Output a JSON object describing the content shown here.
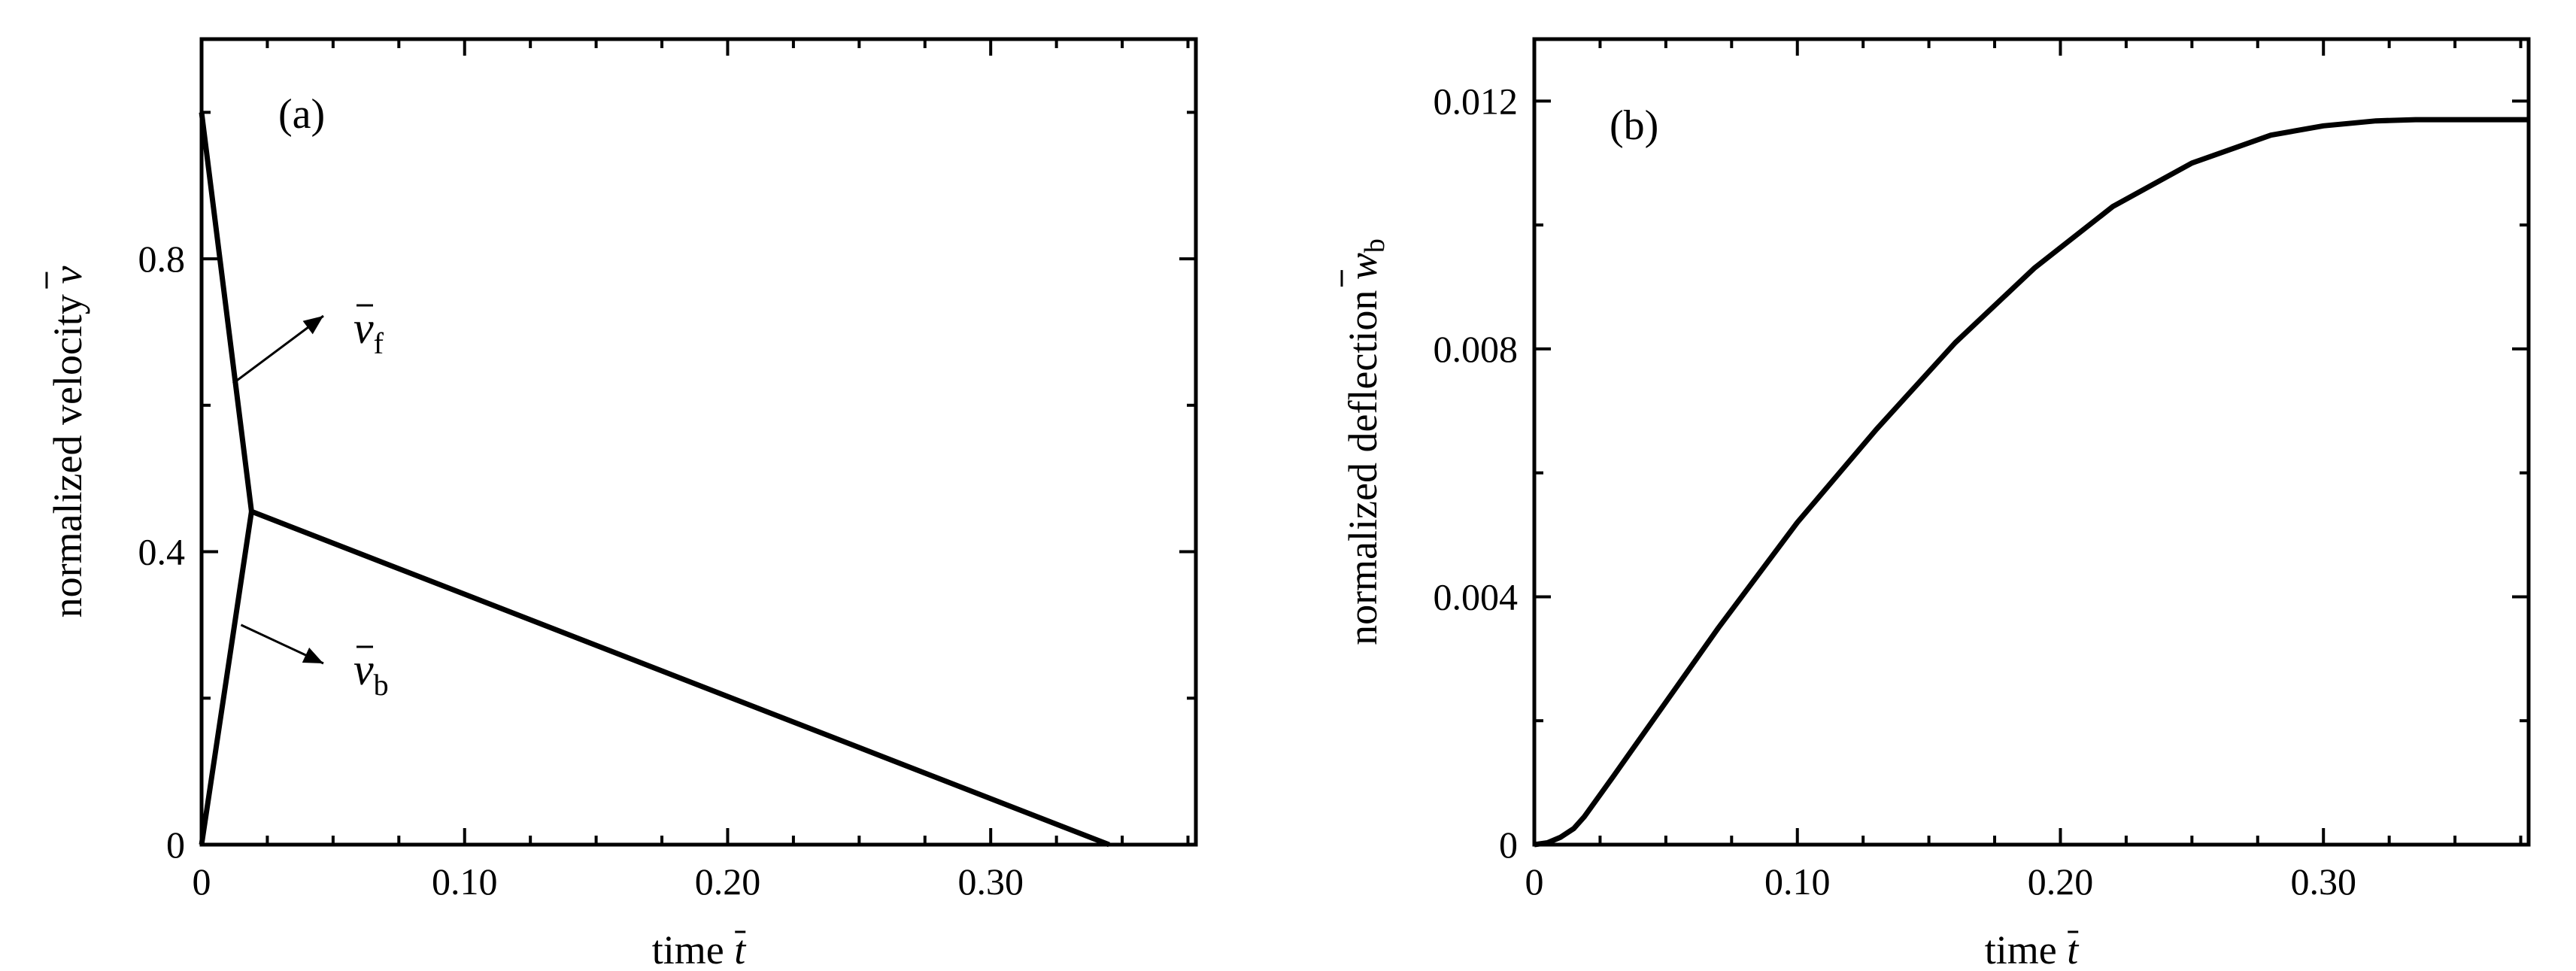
{
  "colors": {
    "line": "#000000",
    "background": "#ffffff"
  },
  "chart_data": [
    {
      "panel": "(a)",
      "type": "line",
      "xlabel": "time",
      "xlabel_symbol": "t",
      "ylabel": "normalized velocity",
      "ylabel_symbol": "v",
      "xlim": [
        0,
        0.378
      ],
      "ylim": [
        0,
        1.1
      ],
      "xticks": [
        0,
        0.1,
        0.2,
        0.3
      ],
      "xtick_labels": [
        "0",
        "0.10",
        "0.20",
        "0.30"
      ],
      "yticks": [
        0,
        0.4,
        0.8
      ],
      "ytick_labels": [
        "0",
        "0.4",
        "0.8"
      ],
      "series": [
        {
          "name": "v̄f",
          "x": [
            0,
            0.019,
            0.345
          ],
          "y": [
            1.0,
            0.455,
            0.0
          ]
        },
        {
          "name": "v̄b",
          "x": [
            0,
            0.019
          ],
          "y": [
            0.0,
            0.455
          ]
        }
      ],
      "annotations": [
        {
          "symbol": "v",
          "subscript": "f",
          "points_to": [
            0.012,
            0.63
          ]
        },
        {
          "symbol": "v",
          "subscript": "b",
          "points_to": [
            0.015,
            0.3
          ]
        }
      ]
    },
    {
      "panel": "(b)",
      "type": "line",
      "xlabel": "time",
      "xlabel_symbol": "t",
      "ylabel": "normalized deflection",
      "ylabel_symbol": "w",
      "ylabel_subscript": "b",
      "xlim": [
        0,
        0.378
      ],
      "ylim": [
        0,
        0.013
      ],
      "xticks": [
        0,
        0.1,
        0.2,
        0.3
      ],
      "xtick_labels": [
        "0",
        "0.10",
        "0.20",
        "0.30"
      ],
      "yticks": [
        0,
        0.004,
        0.008,
        0.012
      ],
      "ytick_labels": [
        "0",
        "0.004",
        "0.008",
        "0.012"
      ],
      "series": [
        {
          "x": [
            0,
            0.005,
            0.01,
            0.015,
            0.019,
            0.03,
            0.05,
            0.07,
            0.1,
            0.13,
            0.16,
            0.19,
            0.22,
            0.25,
            0.28,
            0.3,
            0.32,
            0.335,
            0.345,
            0.378
          ],
          "y": [
            0,
            3e-05,
            0.00012,
            0.00026,
            0.00045,
            0.0011,
            0.0023,
            0.0035,
            0.0052,
            0.0067,
            0.0081,
            0.0093,
            0.0103,
            0.011,
            0.01145,
            0.0116,
            0.01168,
            0.0117,
            0.0117,
            0.0117
          ]
        }
      ]
    }
  ]
}
